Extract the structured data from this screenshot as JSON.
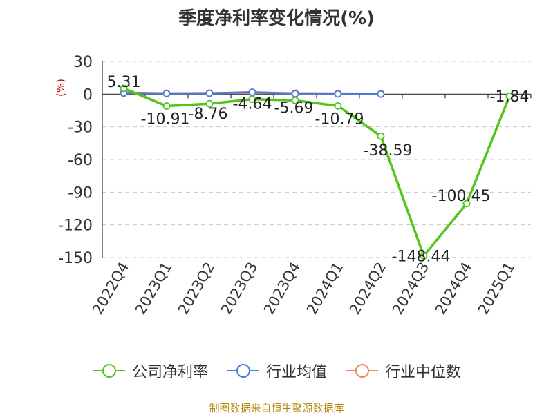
{
  "title": "季度净利率变化情况(%)",
  "source": "制图数据来自恒生聚源数据库",
  "chart_data": {
    "type": "line",
    "title": "季度净利率变化情况(%)",
    "ylabel": "(%)",
    "xlabel": "",
    "ylim": [
      -150,
      30
    ],
    "yticks": [
      30,
      0,
      -30,
      -60,
      -90,
      -120,
      -150
    ],
    "categories": [
      "2022Q4",
      "2023Q1",
      "2023Q2",
      "2023Q3",
      "2023Q4",
      "2024Q1",
      "2024Q2",
      "2024Q3",
      "2024Q4",
      "2025Q1"
    ],
    "grid": true,
    "legend_position": "bottom",
    "series": [
      {
        "name": "公司净利率",
        "color": "#52c41a",
        "values": [
          5.31,
          -10.91,
          -8.76,
          -4.64,
          -5.69,
          -10.79,
          -38.59,
          -148.44,
          -100.45,
          -1.84
        ],
        "labels": [
          "5.31",
          "-10.91",
          "-8.76",
          "-4.64",
          "-5.69",
          "-10.79",
          "-38.59",
          "-148.44",
          "-100.45",
          "-1.84"
        ]
      },
      {
        "name": "行业均值",
        "color": "#4a7bd9",
        "values": [
          1.0,
          0.6,
          0.8,
          1.8,
          0.4,
          0.2,
          0.1,
          null,
          null,
          null
        ]
      },
      {
        "name": "行业中位数",
        "color": "#f0875a",
        "values": [
          1.5,
          0.8,
          1.0,
          1.2,
          0.9,
          0.7,
          0.5,
          null,
          null,
          null
        ]
      }
    ]
  }
}
